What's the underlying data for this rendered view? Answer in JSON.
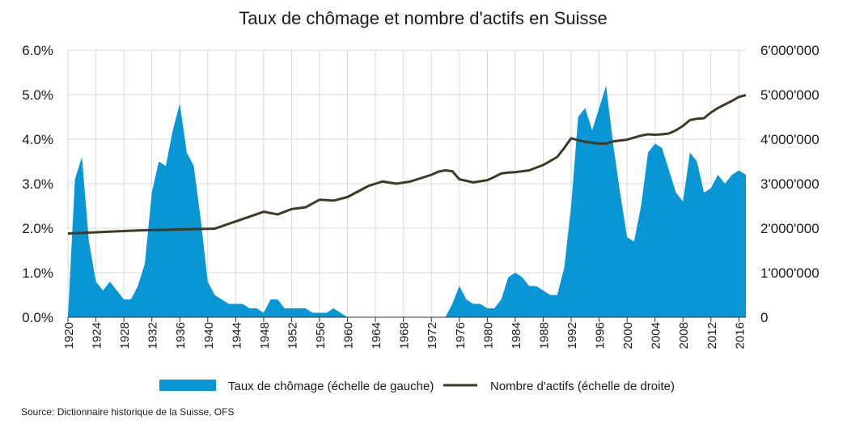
{
  "chart_data": {
    "type": "area+line",
    "title": "Taux de chômage et nombre d'actifs en Suisse",
    "source": "Source: Dictionnaire historique de la Suisse, OFS",
    "colors": {
      "area": "#0897d4",
      "line": "#3e3a28",
      "grid": "#d9d9d9"
    },
    "x_range": [
      1920,
      2017
    ],
    "x_ticks": [
      "1920",
      "1924",
      "1928",
      "1932",
      "1936",
      "1940",
      "1944",
      "1948",
      "1952",
      "1956",
      "1960",
      "1964",
      "1968",
      "1972",
      "1976",
      "1980",
      "1984",
      "1988",
      "1992",
      "1996",
      "2000",
      "2004",
      "2008",
      "2012",
      "2016"
    ],
    "left_axis": {
      "min": 0,
      "max": 6,
      "ticks": [
        "0.0%",
        "1.0%",
        "2.0%",
        "3.0%",
        "4.0%",
        "5.0%",
        "6.0%"
      ]
    },
    "right_axis": {
      "min": 0,
      "max": 6000000,
      "ticks": [
        "0",
        "1'000'000",
        "2'000'000",
        "3'000'000",
        "4'000'000",
        "5'000'000",
        "6'000'000"
      ]
    },
    "grid": true,
    "legend_position": "bottom",
    "series": [
      {
        "name": "Taux de chômage (échelle de gauche)",
        "type": "area",
        "axis": "left",
        "x": [
          1920,
          1921,
          1922,
          1923,
          1924,
          1925,
          1926,
          1927,
          1928,
          1929,
          1930,
          1931,
          1932,
          1933,
          1934,
          1935,
          1936,
          1937,
          1938,
          1939,
          1940,
          1941,
          1942,
          1943,
          1944,
          1945,
          1946,
          1947,
          1948,
          1949,
          1950,
          1951,
          1952,
          1953,
          1954,
          1955,
          1956,
          1957,
          1958,
          1959,
          1960,
          1961,
          1962,
          1963,
          1964,
          1965,
          1966,
          1967,
          1968,
          1969,
          1970,
          1971,
          1972,
          1973,
          1974,
          1975,
          1976,
          1977,
          1978,
          1979,
          1980,
          1981,
          1982,
          1983,
          1984,
          1985,
          1986,
          1987,
          1988,
          1989,
          1990,
          1991,
          1992,
          1993,
          1994,
          1995,
          1996,
          1997,
          1998,
          1999,
          2000,
          2001,
          2002,
          2003,
          2004,
          2005,
          2006,
          2007,
          2008,
          2009,
          2010,
          2011,
          2012,
          2013,
          2014,
          2015,
          2016,
          2017
        ],
        "values": [
          0,
          3.1,
          3.6,
          1.7,
          0.8,
          0.6,
          0.8,
          0.6,
          0.4,
          0.4,
          0.7,
          1.2,
          2.8,
          3.5,
          3.4,
          4.2,
          4.8,
          3.7,
          3.4,
          2.2,
          0.8,
          0.5,
          0.4,
          0.3,
          0.3,
          0.3,
          0.2,
          0.2,
          0.1,
          0.4,
          0.4,
          0.2,
          0.2,
          0.2,
          0.2,
          0.1,
          0.1,
          0.1,
          0.2,
          0.1,
          0,
          0,
          0,
          0,
          0,
          0,
          0,
          0,
          0,
          0,
          0,
          0,
          0,
          0,
          0,
          0.3,
          0.7,
          0.4,
          0.3,
          0.3,
          0.2,
          0.2,
          0.4,
          0.9,
          1.0,
          0.9,
          0.7,
          0.7,
          0.6,
          0.5,
          0.5,
          1.1,
          2.5,
          4.5,
          4.7,
          4.2,
          4.7,
          5.2,
          3.9,
          2.8,
          1.8,
          1.7,
          2.5,
          3.7,
          3.9,
          3.8,
          3.3,
          2.8,
          2.6,
          3.7,
          3.5,
          2.8,
          2.9,
          3.2,
          3.0,
          3.2,
          3.3,
          3.2
        ]
      },
      {
        "name": "Nombre d'actifs (échelle de droite)",
        "type": "line",
        "axis": "right",
        "x": [
          1920,
          1930,
          1941,
          1948,
          1950,
          1952,
          1954,
          1956,
          1958,
          1960,
          1963,
          1965,
          1967,
          1969,
          1971,
          1972,
          1973,
          1974,
          1975,
          1976,
          1978,
          1980,
          1981,
          1982,
          1983,
          1984,
          1986,
          1988,
          1990,
          1991,
          1992,
          1994,
          1996,
          1997,
          1998,
          2000,
          2002,
          2003,
          2004,
          2005,
          2006,
          2007,
          2008,
          2009,
          2010,
          2011,
          2012,
          2013,
          2014,
          2015,
          2016,
          2017
        ],
        "values": [
          1880000,
          1950000,
          1990000,
          2370000,
          2310000,
          2430000,
          2470000,
          2640000,
          2620000,
          2700000,
          2950000,
          3050000,
          3000000,
          3050000,
          3150000,
          3200000,
          3270000,
          3300000,
          3280000,
          3100000,
          3030000,
          3080000,
          3150000,
          3230000,
          3250000,
          3260000,
          3300000,
          3420000,
          3600000,
          3800000,
          4020000,
          3940000,
          3900000,
          3900000,
          3950000,
          3990000,
          4080000,
          4110000,
          4100000,
          4110000,
          4130000,
          4200000,
          4300000,
          4430000,
          4460000,
          4470000,
          4600000,
          4700000,
          4780000,
          4860000,
          4950000,
          4990000
        ]
      }
    ]
  }
}
